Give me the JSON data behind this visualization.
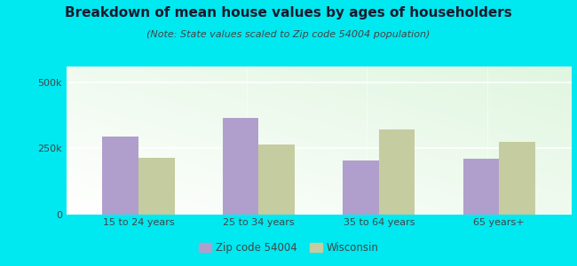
{
  "title": "Breakdown of mean house values by ages of householders",
  "subtitle": "(Note: State values scaled to Zip code 54004 population)",
  "categories": [
    "15 to 24 years",
    "25 to 34 years",
    "35 to 64 years",
    "65 years+"
  ],
  "zip_values": [
    295000,
    365000,
    205000,
    210000
  ],
  "state_values": [
    215000,
    265000,
    320000,
    275000
  ],
  "ylim": [
    0,
    560000
  ],
  "ytick_vals": [
    0,
    250000,
    500000
  ],
  "ytick_labels": [
    "0",
    "250k",
    "500k"
  ],
  "zip_color": "#b09fcc",
  "state_color": "#c5cc9f",
  "background_outer": "#00e8f0",
  "title_fontsize": 11,
  "subtitle_fontsize": 8,
  "tick_fontsize": 8,
  "legend_label_zip": "Zip code 54004",
  "legend_label_state": "Wisconsin",
  "bar_width": 0.3
}
